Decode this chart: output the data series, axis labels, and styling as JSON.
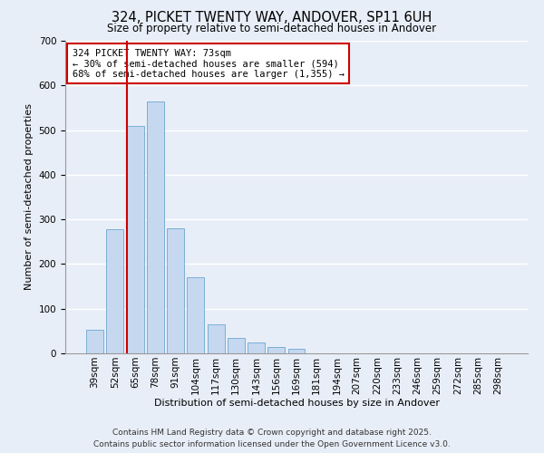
{
  "title": "324, PICKET TWENTY WAY, ANDOVER, SP11 6UH",
  "subtitle": "Size of property relative to semi-detached houses in Andover",
  "xlabel": "Distribution of semi-detached houses by size in Andover",
  "ylabel": "Number of semi-detached properties",
  "categories": [
    "39sqm",
    "52sqm",
    "65sqm",
    "78sqm",
    "91sqm",
    "104sqm",
    "117sqm",
    "130sqm",
    "143sqm",
    "156sqm",
    "169sqm",
    "181sqm",
    "194sqm",
    "207sqm",
    "220sqm",
    "233sqm",
    "246sqm",
    "259sqm",
    "272sqm",
    "285sqm",
    "298sqm"
  ],
  "values": [
    52,
    277,
    510,
    565,
    280,
    170,
    65,
    35,
    25,
    15,
    10,
    1,
    0,
    1,
    0,
    0,
    1,
    0,
    0,
    0,
    0
  ],
  "bar_color": "#c5d8f0",
  "bar_edge_color": "#7bafd4",
  "background_color": "#e8eef8",
  "grid_color": "#ffffff",
  "vline_color": "#cc0000",
  "vline_pos": 1.575,
  "annotation_text": "324 PICKET TWENTY WAY: 73sqm\n← 30% of semi-detached houses are smaller (594)\n68% of semi-detached houses are larger (1,355) →",
  "annotation_box_color": "#ffffff",
  "annotation_box_edge": "#cc0000",
  "footer_line1": "Contains HM Land Registry data © Crown copyright and database right 2025.",
  "footer_line2": "Contains public sector information licensed under the Open Government Licence v3.0.",
  "ylim": [
    0,
    700
  ],
  "yticks": [
    0,
    100,
    200,
    300,
    400,
    500,
    600,
    700
  ],
  "title_fontsize": 10.5,
  "subtitle_fontsize": 8.5,
  "ylabel_fontsize": 8,
  "xlabel_fontsize": 8,
  "tick_fontsize": 7.5,
  "annot_fontsize": 7.5,
  "footer_fontsize": 6.5
}
